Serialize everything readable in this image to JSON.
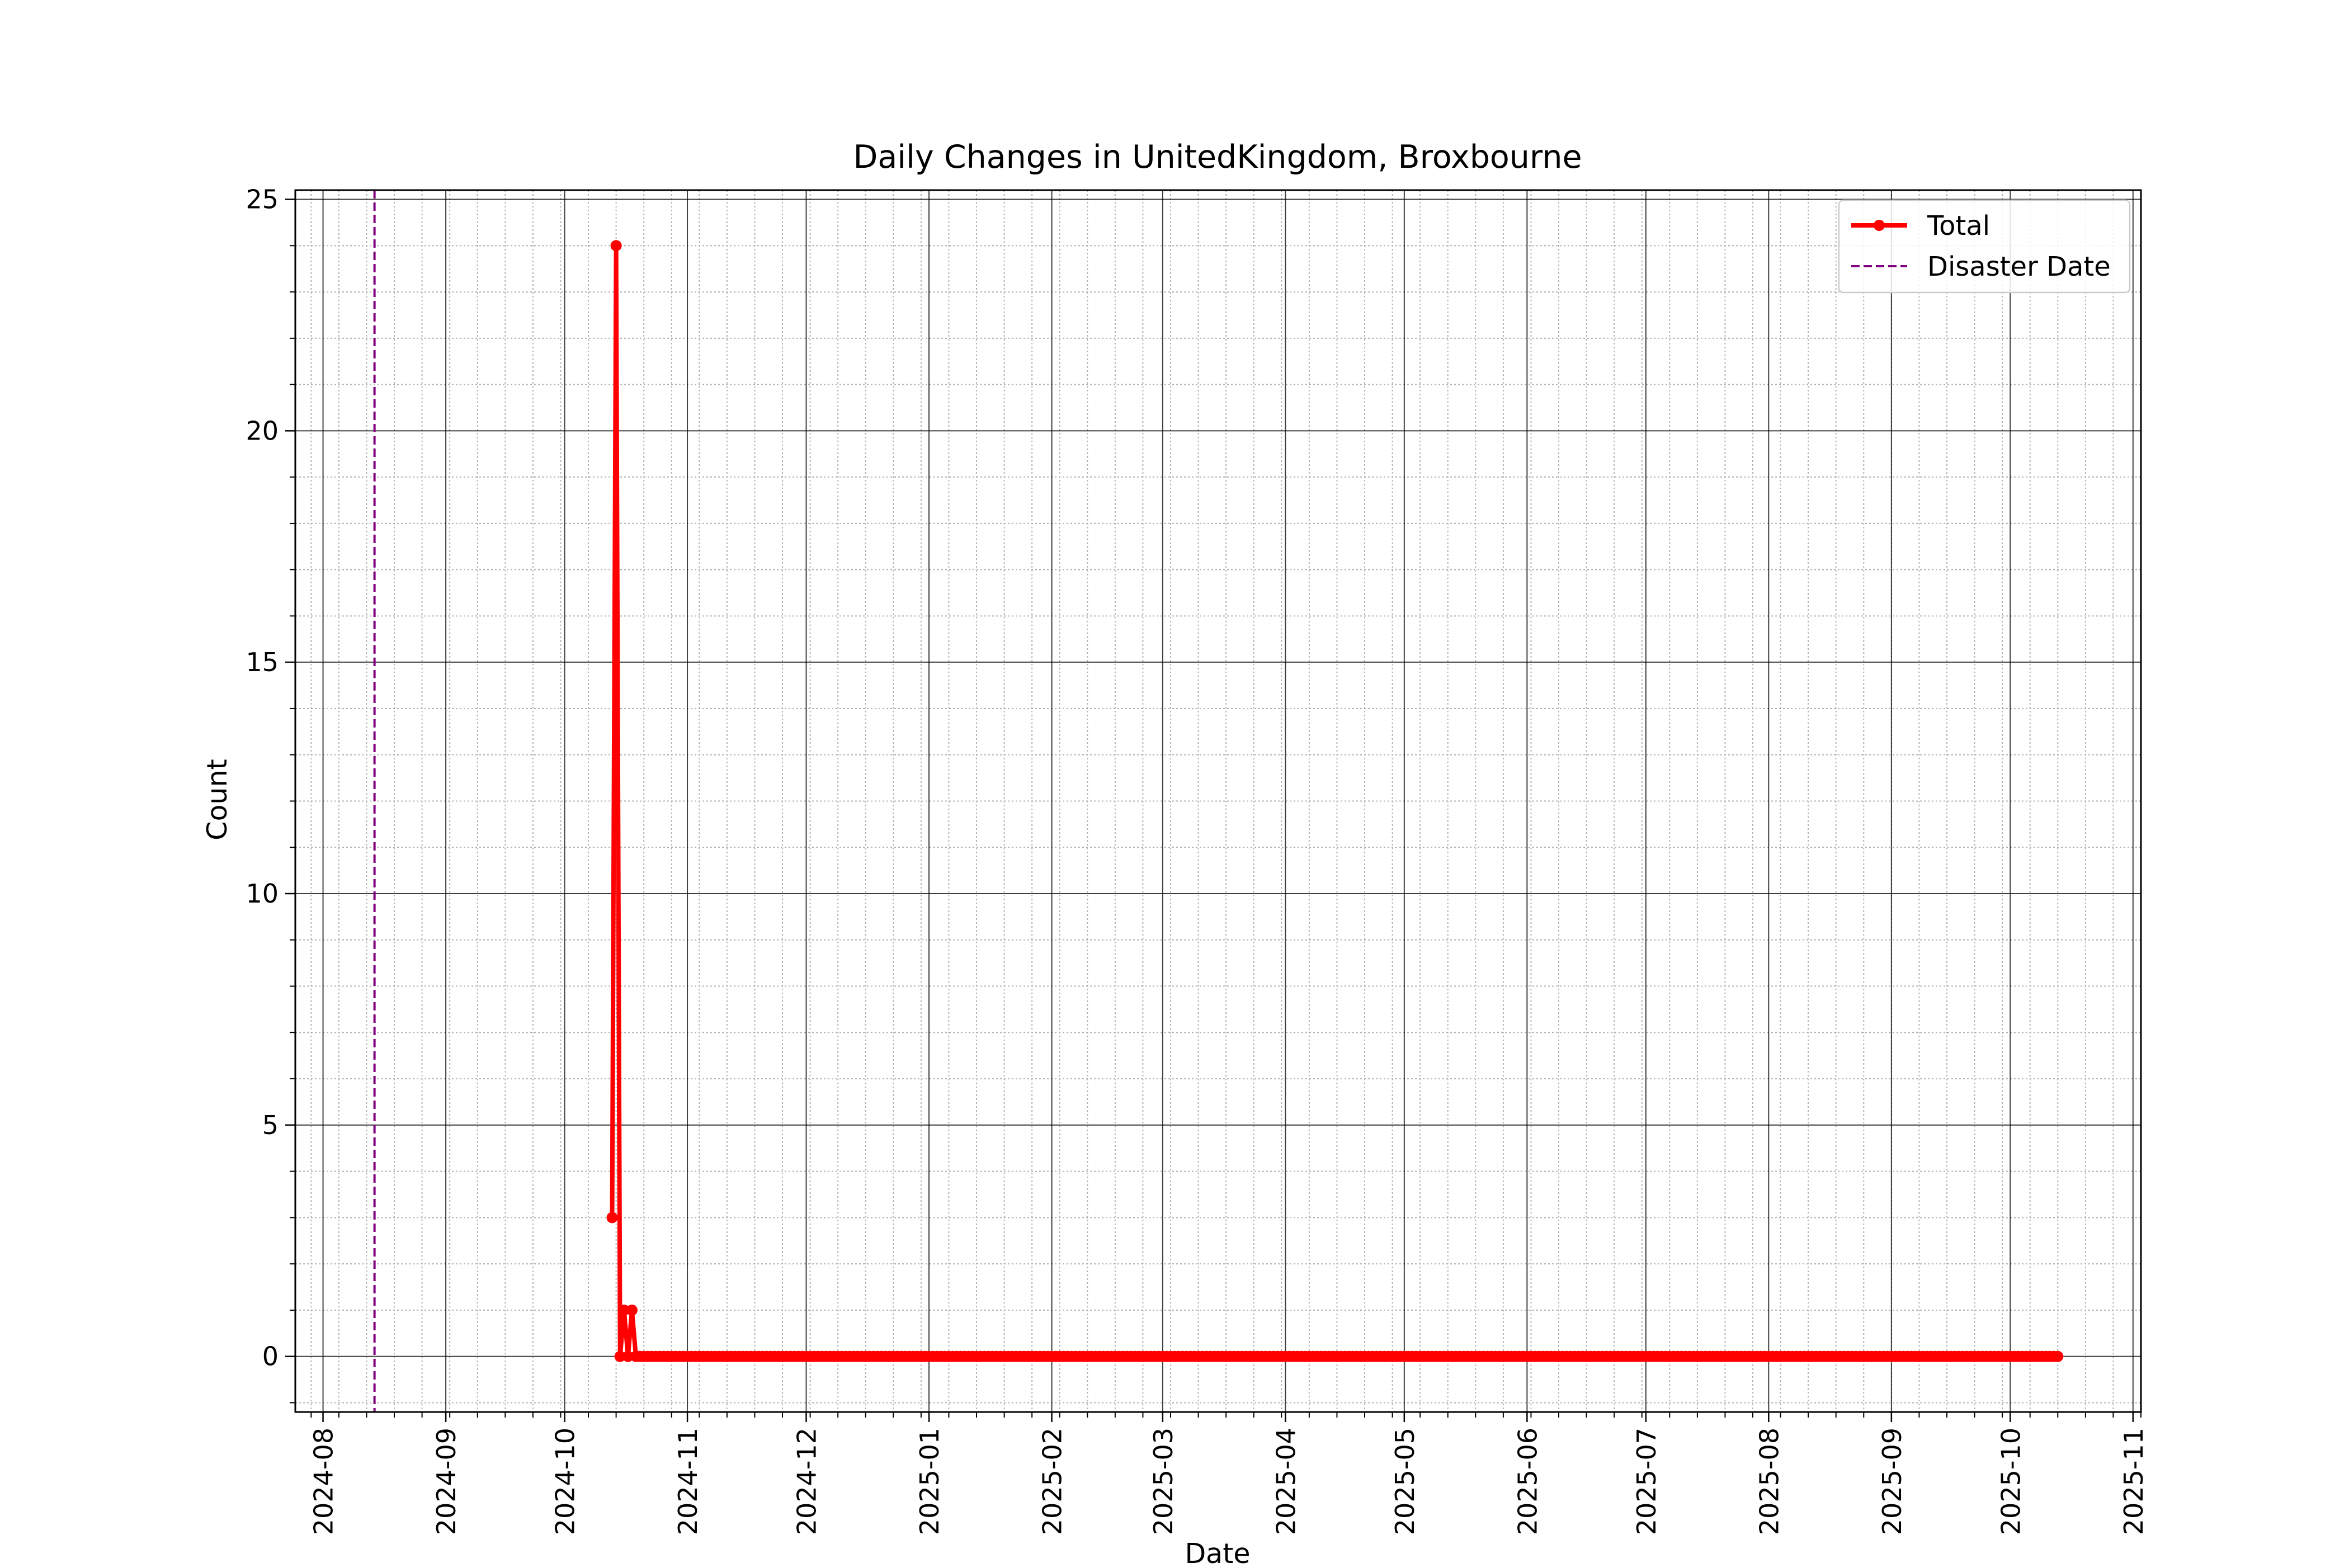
{
  "chart_data": {
    "type": "line",
    "title": "Daily Changes in UnitedKingdom, Broxbourne",
    "xlabel": "Date",
    "ylabel": "Count",
    "xlim": [
      "2024-07-25",
      "2025-11-03"
    ],
    "ylim": [
      -1.2,
      25.2
    ],
    "x_ticks": [
      "2024-08",
      "2024-09",
      "2024-10",
      "2024-11",
      "2024-12",
      "2025-01",
      "2025-02",
      "2025-03",
      "2025-04",
      "2025-05",
      "2025-06",
      "2025-07",
      "2025-08",
      "2025-09",
      "2025-10",
      "2025-11"
    ],
    "y_ticks": [
      0,
      5,
      10,
      15,
      20,
      25
    ],
    "grid": {
      "major": true,
      "minor": true
    },
    "legend": {
      "position": "top-right",
      "entries": [
        "Total",
        "Disaster Date"
      ]
    },
    "series": [
      {
        "name": "Total",
        "color": "#ff0000",
        "marker": "circle",
        "points": [
          {
            "date": "2024-10-13",
            "value": 3
          },
          {
            "date": "2024-10-14",
            "value": 24
          },
          {
            "date": "2024-10-15",
            "value": 0
          },
          {
            "date": "2024-10-16",
            "value": 1
          },
          {
            "date": "2024-10-17",
            "value": 0
          },
          {
            "date": "2024-10-18",
            "value": 1
          },
          {
            "date": "2024-10-19",
            "value": 0
          }
        ],
        "constant_tail": {
          "from": "2024-10-20",
          "to": "2025-10-13",
          "value": 0
        }
      }
    ],
    "reference_lines": [
      {
        "name": "Disaster Date",
        "date": "2024-08-14",
        "color": "#800080",
        "style": "dashed"
      }
    ]
  }
}
